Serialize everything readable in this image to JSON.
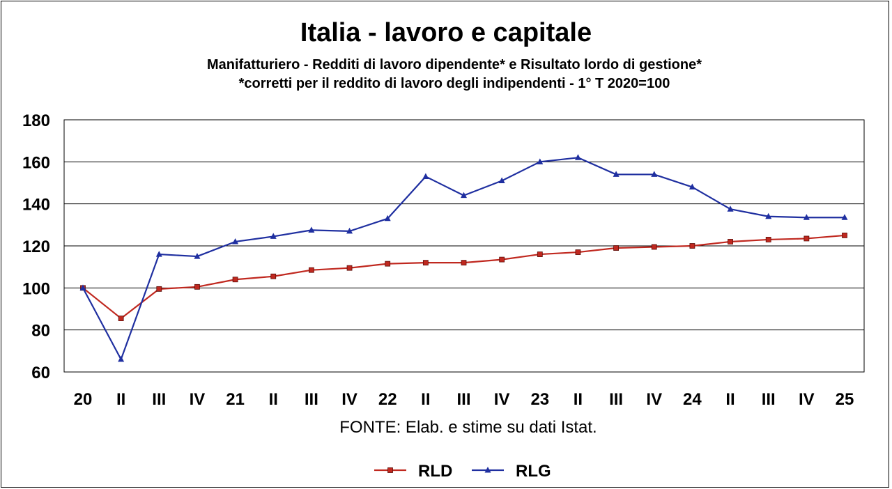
{
  "title": "Italia - lavoro e capitale",
  "subtitle_line1": "Manifatturiero - Redditi di lavoro dipendente* e Risultato lordo di gestione*",
  "subtitle_line2": "*corretti per il reddito di lavoro degli indipendenti - 1° T 2020=100",
  "source": "FONTE: Elab. e stime su dati Istat.",
  "colors": {
    "RLD": "#c0281f",
    "RLG": "#1f2fa0",
    "grid": "#000000"
  },
  "chart_data": {
    "type": "line",
    "categories": [
      "20",
      "II",
      "III",
      "IV",
      "21",
      "II",
      "III",
      "IV",
      "22",
      "II",
      "III",
      "IV",
      "23",
      "II",
      "III",
      "IV",
      "24",
      "II",
      "III",
      "IV",
      "25"
    ],
    "yticks": [
      60,
      80,
      100,
      120,
      140,
      160,
      180
    ],
    "ylim": [
      60,
      180
    ],
    "grid": true,
    "legend_position": "bottom",
    "series": [
      {
        "name": "RLD",
        "marker": "square",
        "values": [
          100,
          85.5,
          99.5,
          100.5,
          104,
          105.5,
          108.5,
          109.5,
          111.5,
          112,
          112,
          113.5,
          116,
          117,
          119,
          119.5,
          120,
          122,
          123,
          123.5,
          125
        ]
      },
      {
        "name": "RLG",
        "marker": "triangle",
        "values": [
          100,
          66,
          116,
          115,
          122,
          124.5,
          127.5,
          127,
          133,
          153,
          144,
          151,
          160,
          162,
          154,
          154,
          148,
          137.5,
          134,
          133.5,
          133.5
        ]
      }
    ]
  }
}
